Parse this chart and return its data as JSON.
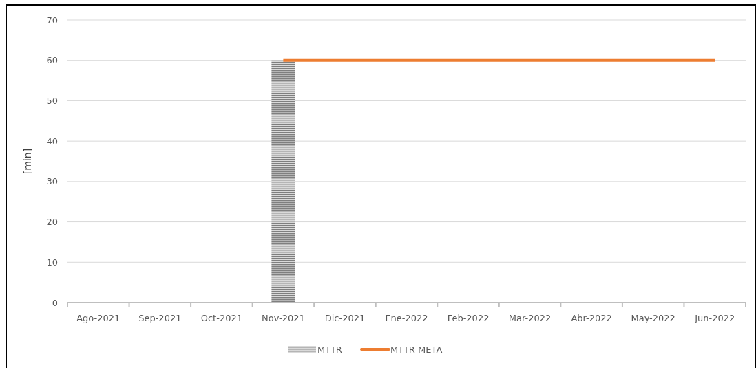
{
  "chart_data": {
    "type": "bar",
    "ylabel": "[min]",
    "categories": [
      "Ago-2021",
      "Sep-2021",
      "Oct-2021",
      "Nov-2021",
      "Dic-2021",
      "Ene-2022",
      "Feb-2022",
      "Mar-2022",
      "Abr-2022",
      "May-2022",
      "Jun-2022"
    ],
    "series": [
      {
        "name": "MTTR",
        "color": "#7f7f7f",
        "values": [
          null,
          null,
          null,
          60,
          null,
          null,
          null,
          null,
          null,
          null,
          null
        ]
      },
      {
        "name": "MTTR META",
        "type": "line",
        "color": "#ed7d31",
        "values": [
          null,
          null,
          null,
          60,
          60,
          60,
          60,
          60,
          60,
          60,
          60
        ]
      }
    ],
    "ylim": [
      0,
      70
    ],
    "yticks": [
      0,
      10,
      20,
      30,
      40,
      50,
      60,
      70
    ],
    "grid": "y",
    "legend": "bottom",
    "marker": "none",
    "line_style": "solid"
  }
}
